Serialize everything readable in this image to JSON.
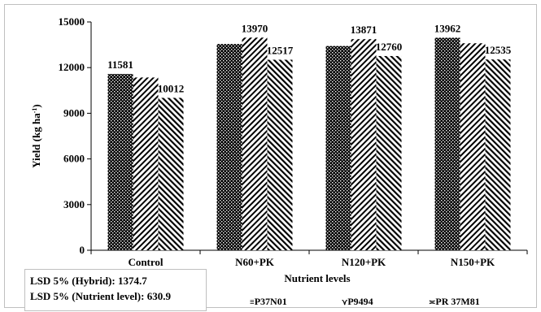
{
  "chart_data": {
    "type": "bar",
    "categories": [
      "Control",
      "N60+PK",
      "N120+PK",
      "N150+PK"
    ],
    "series": [
      {
        "name": "P37N01",
        "values": [
          11581,
          13550,
          13420,
          13962
        ],
        "pattern": "crosshatch"
      },
      {
        "name": "P9494",
        "values": [
          11350,
          13970,
          13871,
          13600
        ],
        "pattern": "diag-right"
      },
      {
        "name": "PR 37M81",
        "values": [
          10012,
          12517,
          12760,
          12535
        ],
        "pattern": "diag-left"
      }
    ],
    "data_labels": [
      {
        "category": 0,
        "series": 0,
        "text": "11581"
      },
      {
        "category": 0,
        "series": 2,
        "text": "10012"
      },
      {
        "category": 1,
        "series": 1,
        "text": "13970"
      },
      {
        "category": 1,
        "series": 2,
        "text": "12517"
      },
      {
        "category": 2,
        "series": 1,
        "text": "13871"
      },
      {
        "category": 2,
        "series": 2,
        "text": "12760"
      },
      {
        "category": 3,
        "series": 0,
        "text": "13962"
      },
      {
        "category": 3,
        "series": 2,
        "text": "12535"
      }
    ],
    "xlabel": "Nutrient levels",
    "ylabel": "Yield (kg ha",
    "ylabel_sup": "-1",
    "ylabel_close": ")",
    "ylim": [
      0,
      15000
    ],
    "yticks": [
      0,
      3000,
      6000,
      9000,
      12000,
      15000
    ],
    "grid": false,
    "legend_position": "bottom-right",
    "legend_markers": [
      "≡",
      "⋎",
      "≍"
    ],
    "colors": {
      "bar_fill": "#000000",
      "bar_background": "#ffffff",
      "axis": "#000000"
    }
  },
  "lsd": {
    "line1": "LSD 5% (Hybrid): 1374.7",
    "line2": "LSD 5% (Nutrient level): 630.9"
  }
}
